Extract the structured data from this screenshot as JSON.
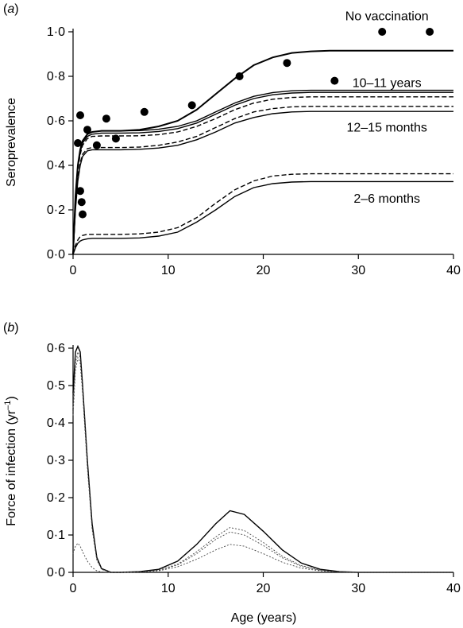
{
  "panels": [
    {
      "id": "a",
      "panel_label": "a",
      "ylabel": "Seroprevalence",
      "xlabel": "",
      "xlim": [
        0,
        40
      ],
      "ylim": [
        0,
        1.0
      ],
      "xticks": [
        0,
        10,
        20,
        30,
        40
      ],
      "yticks": [
        0,
        0.2,
        0.4,
        0.6,
        0.8,
        1.0
      ],
      "ytick_labels": [
        "0·0",
        "0·2",
        "0·4",
        "0·6",
        "0·8",
        "1·0"
      ],
      "xtick_labels": [
        "0",
        "10",
        "20",
        "30",
        "40"
      ],
      "annotations": [
        {
          "text": "No vaccination",
          "x": 33,
          "y": 1.07
        },
        {
          "text": "10–11 years",
          "x": 33,
          "y": 0.77
        },
        {
          "text": "12–15 months",
          "x": 33,
          "y": 0.57
        },
        {
          "text": "2–6 months",
          "x": 33,
          "y": 0.25
        }
      ]
    },
    {
      "id": "b",
      "panel_label": "b",
      "ylabel": "Force of infection (yr",
      "ylabel_sup": "–1",
      "ylabel_end": ")",
      "xlabel": "Age (years)",
      "xlim": [
        0,
        40
      ],
      "ylim": [
        0,
        0.6
      ],
      "xticks": [
        0,
        10,
        20,
        30,
        40
      ],
      "yticks": [
        0,
        0.1,
        0.2,
        0.3,
        0.4,
        0.5,
        0.6
      ],
      "ytick_labels": [
        "0·0",
        "0·1",
        "0·2",
        "0·3",
        "0·4",
        "0·5",
        "0·6"
      ],
      "xtick_labels": [
        "0",
        "10",
        "20",
        "30",
        "40"
      ]
    }
  ],
  "chart_data": [
    {
      "type": "line",
      "panel": "a",
      "x": [
        0,
        0.25,
        0.5,
        0.75,
        1,
        1.5,
        2,
        3,
        4,
        5,
        7,
        9,
        11,
        13,
        15,
        17,
        19,
        21,
        23,
        25,
        27,
        30,
        35,
        40
      ],
      "series": [
        {
          "style": "solid",
          "y": [
            0,
            0.26,
            0.4,
            0.47,
            0.51,
            0.54,
            0.55,
            0.555,
            0.555,
            0.555,
            0.56,
            0.575,
            0.6,
            0.65,
            0.72,
            0.79,
            0.85,
            0.885,
            0.905,
            0.912,
            0.915,
            0.915,
            0.915,
            0.915
          ]
        },
        {
          "style": "solid",
          "y": [
            0,
            0.26,
            0.4,
            0.47,
            0.51,
            0.54,
            0.55,
            0.555,
            0.555,
            0.555,
            0.556,
            0.562,
            0.575,
            0.6,
            0.64,
            0.68,
            0.71,
            0.727,
            0.735,
            0.737,
            0.737,
            0.737,
            0.737,
            0.737
          ]
        },
        {
          "style": "solid",
          "y": [
            0,
            0.25,
            0.39,
            0.46,
            0.5,
            0.53,
            0.54,
            0.545,
            0.545,
            0.545,
            0.546,
            0.552,
            0.565,
            0.59,
            0.63,
            0.67,
            0.7,
            0.717,
            0.725,
            0.728,
            0.728,
            0.728,
            0.728,
            0.728
          ]
        },
        {
          "style": "dashed",
          "y": [
            0,
            0.24,
            0.38,
            0.45,
            0.49,
            0.52,
            0.53,
            0.532,
            0.532,
            0.532,
            0.533,
            0.538,
            0.55,
            0.575,
            0.61,
            0.65,
            0.68,
            0.697,
            0.705,
            0.708,
            0.708,
            0.708,
            0.708,
            0.708
          ]
        },
        {
          "style": "dashed",
          "y": [
            0,
            0.21,
            0.34,
            0.41,
            0.45,
            0.475,
            0.48,
            0.48,
            0.48,
            0.48,
            0.482,
            0.49,
            0.505,
            0.53,
            0.57,
            0.61,
            0.64,
            0.655,
            0.663,
            0.665,
            0.665,
            0.665,
            0.665,
            0.665
          ]
        },
        {
          "style": "solid",
          "y": [
            0,
            0.2,
            0.33,
            0.4,
            0.44,
            0.465,
            0.47,
            0.47,
            0.47,
            0.47,
            0.472,
            0.478,
            0.49,
            0.515,
            0.55,
            0.59,
            0.615,
            0.632,
            0.64,
            0.642,
            0.642,
            0.642,
            0.642,
            0.642
          ]
        },
        {
          "style": "dashed",
          "y": [
            0,
            0.04,
            0.065,
            0.08,
            0.085,
            0.09,
            0.09,
            0.09,
            0.09,
            0.09,
            0.092,
            0.1,
            0.12,
            0.165,
            0.23,
            0.29,
            0.33,
            0.352,
            0.36,
            0.362,
            0.362,
            0.362,
            0.362,
            0.362
          ]
        },
        {
          "style": "solid",
          "y": [
            0,
            0.03,
            0.05,
            0.06,
            0.065,
            0.07,
            0.072,
            0.072,
            0.072,
            0.072,
            0.074,
            0.082,
            0.1,
            0.145,
            0.2,
            0.26,
            0.3,
            0.318,
            0.325,
            0.327,
            0.327,
            0.327,
            0.327,
            0.327
          ]
        }
      ],
      "points": {
        "x": [
          0.5,
          0.75,
          0.75,
          1,
          1.5,
          2.5,
          3.5,
          4.5,
          7.5,
          12.5,
          17.5,
          22.5,
          27.5,
          32.5,
          37.5
        ],
        "y": [
          0.5,
          0.625,
          0.285,
          0.18,
          0.56,
          0.49,
          0.61,
          0.52,
          0.64,
          0.67,
          0.8,
          0.86,
          0.78,
          1.0,
          1.0
        ]
      },
      "points_extra": {
        "x": [
          0.9
        ],
        "y": [
          0.235
        ]
      }
    },
    {
      "type": "line",
      "panel": "b",
      "x": [
        0,
        0.25,
        0.5,
        0.75,
        1,
        1.5,
        2,
        2.5,
        3,
        4,
        5,
        7,
        9,
        11,
        13,
        15,
        16.5,
        18,
        20,
        22,
        24,
        26,
        28,
        30,
        35,
        40
      ],
      "series": [
        {
          "style": "solid",
          "y": [
            0.48,
            0.59,
            0.605,
            0.59,
            0.5,
            0.3,
            0.13,
            0.04,
            0.01,
            0,
            0,
            0.002,
            0.008,
            0.03,
            0.075,
            0.13,
            0.165,
            0.155,
            0.11,
            0.06,
            0.025,
            0.008,
            0.002,
            0,
            0,
            0
          ]
        },
        {
          "style": "dotted",
          "y": [
            0.44,
            0.56,
            0.59,
            0.575,
            0.49,
            0.29,
            0.12,
            0.035,
            0.008,
            0,
            0,
            0.001,
            0.006,
            0.022,
            0.055,
            0.095,
            0.12,
            0.112,
            0.08,
            0.043,
            0.018,
            0.006,
            0.001,
            0,
            0,
            0
          ]
        },
        {
          "style": "dotted",
          "y": [
            0.42,
            0.54,
            0.575,
            0.56,
            0.48,
            0.28,
            0.115,
            0.033,
            0.008,
            0,
            0,
            0.001,
            0.005,
            0.02,
            0.05,
            0.088,
            0.108,
            0.1,
            0.072,
            0.039,
            0.016,
            0.005,
            0.001,
            0,
            0,
            0
          ]
        },
        {
          "style": "dotted",
          "y": [
            0.05,
            0.07,
            0.078,
            0.07,
            0.055,
            0.03,
            0.013,
            0.004,
            0.001,
            0,
            0,
            0.001,
            0.004,
            0.015,
            0.035,
            0.06,
            0.075,
            0.07,
            0.05,
            0.027,
            0.011,
            0.004,
            0.001,
            0,
            0,
            0
          ]
        }
      ]
    }
  ]
}
